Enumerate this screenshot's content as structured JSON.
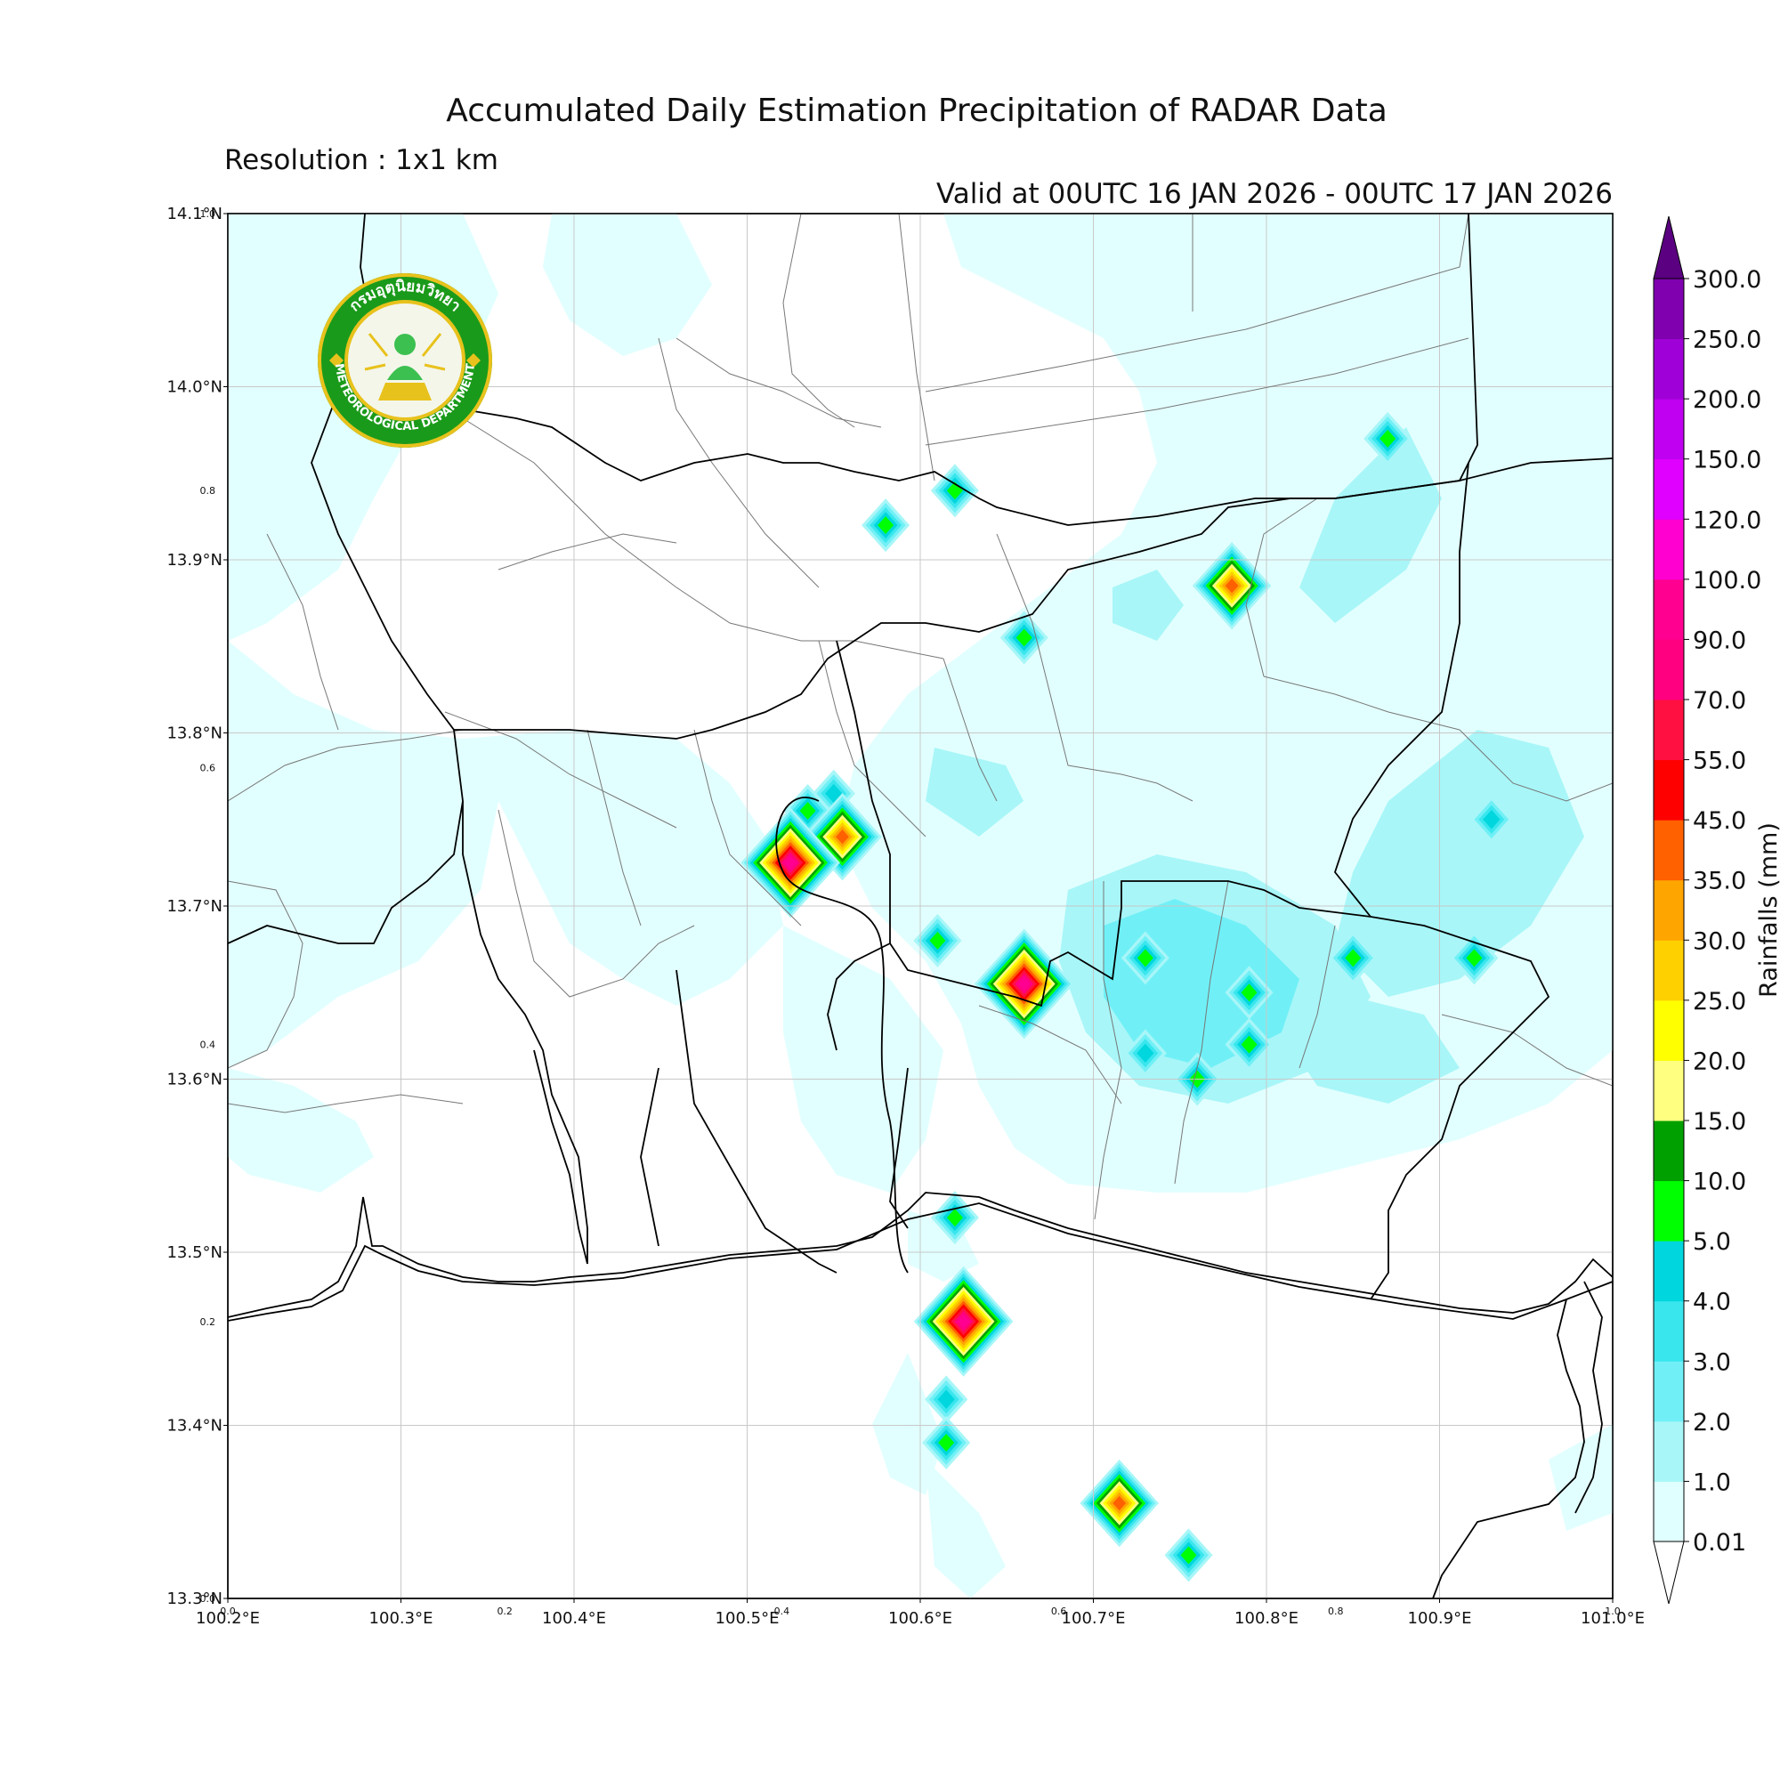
{
  "header": {
    "title": "Accumulated Daily Estimation Precipitation of RADAR Data",
    "resolution": "Resolution : 1x1 km",
    "valid": "Valid at 00UTC 16 JAN 2026 - 00UTC 17 JAN 2026"
  },
  "logo": {
    "text_top": "กรมอุตุนิยมวิทยา",
    "text_bottom": "METEOROLOGICAL DEPARTMENT",
    "colors": {
      "ring": "#1a9a1a",
      "gold": "#e8c21c",
      "figure": "#3cc050"
    }
  },
  "map": {
    "lon_range": [
      100.2,
      101.0
    ],
    "lat_range": [
      13.3,
      14.1
    ],
    "grid": true,
    "lat_ticks": [
      {
        "value": 14.1,
        "label": "14.1°N"
      },
      {
        "value": 14.0,
        "label": "14.0°N"
      },
      {
        "value": 13.9,
        "label": "13.9°N"
      },
      {
        "value": 13.8,
        "label": "13.8°N"
      },
      {
        "value": 13.7,
        "label": "13.7°N"
      },
      {
        "value": 13.6,
        "label": "13.6°N"
      },
      {
        "value": 13.5,
        "label": "13.5°N"
      },
      {
        "value": 13.4,
        "label": "13.4°N"
      },
      {
        "value": 13.3,
        "label": "13.3°N"
      }
    ],
    "lon_ticks": [
      {
        "value": 100.2,
        "label": "100.2°E"
      },
      {
        "value": 100.3,
        "label": "100.3°E"
      },
      {
        "value": 100.4,
        "label": "100.4°E"
      },
      {
        "value": 100.5,
        "label": "100.5°E"
      },
      {
        "value": 100.6,
        "label": "100.6°E"
      },
      {
        "value": 100.7,
        "label": "100.7°E"
      },
      {
        "value": 100.8,
        "label": "100.8°E"
      },
      {
        "value": 100.9,
        "label": "100.9°E"
      },
      {
        "value": 101.0,
        "label": "101.0°E"
      }
    ],
    "minor_y_ticks": [
      {
        "value": 1.0,
        "label": "1.0"
      },
      {
        "value": 0.8,
        "label": "0.8"
      },
      {
        "value": 0.6,
        "label": "0.6"
      },
      {
        "value": 0.4,
        "label": "0.4"
      },
      {
        "value": 0.2,
        "label": "0.2"
      },
      {
        "value": 0.0,
        "label": "0.0"
      }
    ],
    "minor_x_ticks": [
      {
        "value": 0.0,
        "label": "0.0"
      },
      {
        "value": 0.2,
        "label": "0.2"
      },
      {
        "value": 0.4,
        "label": "0.4"
      },
      {
        "value": 0.6,
        "label": "0.6"
      },
      {
        "value": 0.8,
        "label": "0.8"
      },
      {
        "value": 1.0,
        "label": "1.0"
      }
    ],
    "rain_cells": [
      {
        "lon": 100.58,
        "lat": 13.92,
        "level": 5
      },
      {
        "lon": 100.62,
        "lat": 13.94,
        "level": 5
      },
      {
        "lon": 100.66,
        "lat": 13.855,
        "level": 5
      },
      {
        "lon": 100.78,
        "lat": 13.885,
        "level": 11
      },
      {
        "lon": 100.87,
        "lat": 13.97,
        "level": 5
      },
      {
        "lon": 100.55,
        "lat": 13.765,
        "level": 4
      },
      {
        "lon": 100.535,
        "lat": 13.755,
        "level": 5
      },
      {
        "lon": 100.555,
        "lat": 13.74,
        "level": 11
      },
      {
        "lon": 100.525,
        "lat": 13.725,
        "level": 15
      },
      {
        "lon": 100.61,
        "lat": 13.68,
        "level": 5
      },
      {
        "lon": 100.66,
        "lat": 13.655,
        "level": 15
      },
      {
        "lon": 100.73,
        "lat": 13.67,
        "level": 5
      },
      {
        "lon": 100.79,
        "lat": 13.65,
        "level": 5
      },
      {
        "lon": 100.85,
        "lat": 13.67,
        "level": 5
      },
      {
        "lon": 100.92,
        "lat": 13.67,
        "level": 5
      },
      {
        "lon": 100.93,
        "lat": 13.75,
        "level": 4
      },
      {
        "lon": 100.79,
        "lat": 13.62,
        "level": 5
      },
      {
        "lon": 100.76,
        "lat": 13.6,
        "level": 5
      },
      {
        "lon": 100.73,
        "lat": 13.615,
        "level": 4
      },
      {
        "lon": 100.62,
        "lat": 13.52,
        "level": 5
      },
      {
        "lon": 100.625,
        "lat": 13.46,
        "level": 15
      },
      {
        "lon": 100.615,
        "lat": 13.415,
        "level": 4
      },
      {
        "lon": 100.615,
        "lat": 13.39,
        "level": 5
      },
      {
        "lon": 100.715,
        "lat": 13.355,
        "level": 11
      },
      {
        "lon": 100.755,
        "lat": 13.325,
        "level": 5
      }
    ]
  },
  "colorbar": {
    "title": "Rainfalls (mm)",
    "levels": [
      "0.01",
      "1.0",
      "2.0",
      "3.0",
      "4.0",
      "5.0",
      "10.0",
      "15.0",
      "20.0",
      "25.0",
      "30.0",
      "35.0",
      "45.0",
      "55.0",
      "70.0",
      "90.0",
      "100.0",
      "120.0",
      "150.0",
      "200.0",
      "250.0",
      "300.0"
    ],
    "colors": [
      "#e0ffff",
      "#a8f6f8",
      "#70f0f6",
      "#3ae6ee",
      "#00d6de",
      "#00ff00",
      "#00a000",
      "#ffff80",
      "#ffff00",
      "#ffd000",
      "#ffa500",
      "#ff6000",
      "#ff0000",
      "#ff1040",
      "#ff0080",
      "#ff0090",
      "#ff00d0",
      "#e000ff",
      "#c000f0",
      "#a000d8",
      "#8000b0"
    ],
    "over_color": "#5a0080"
  }
}
